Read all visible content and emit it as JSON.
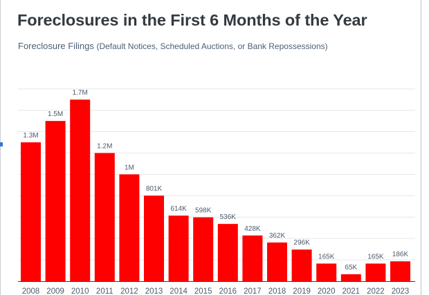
{
  "chart_data": {
    "type": "bar",
    "title": "Foreclosures in the First 6 Months of the Year",
    "subtitle": "Foreclosure Filings",
    "subtitle_note": "(Default Notices, Scheduled Auctions, or Bank Repossessions)",
    "xlabel": "",
    "ylabel": "",
    "ylim": [
      0,
      1800000
    ],
    "grid": true,
    "bar_color": "#ff0000",
    "categories": [
      "2008",
      "2009",
      "2010",
      "2011",
      "2012",
      "2013",
      "2014",
      "2015",
      "2016",
      "2017",
      "2018",
      "2019",
      "2020",
      "2021",
      "2022",
      "2023"
    ],
    "values": [
      1300000,
      1500000,
      1700000,
      1200000,
      1000000,
      801000,
      614000,
      598000,
      536000,
      428000,
      362000,
      296000,
      165000,
      65000,
      165000,
      186000
    ],
    "value_labels": [
      "1.3M",
      "1.5M",
      "1.7M",
      "1.2M",
      "1M",
      "801K",
      "614K",
      "598K",
      "536K",
      "428K",
      "362K",
      "296K",
      "165K",
      "65K",
      "165K",
      "186K"
    ]
  }
}
